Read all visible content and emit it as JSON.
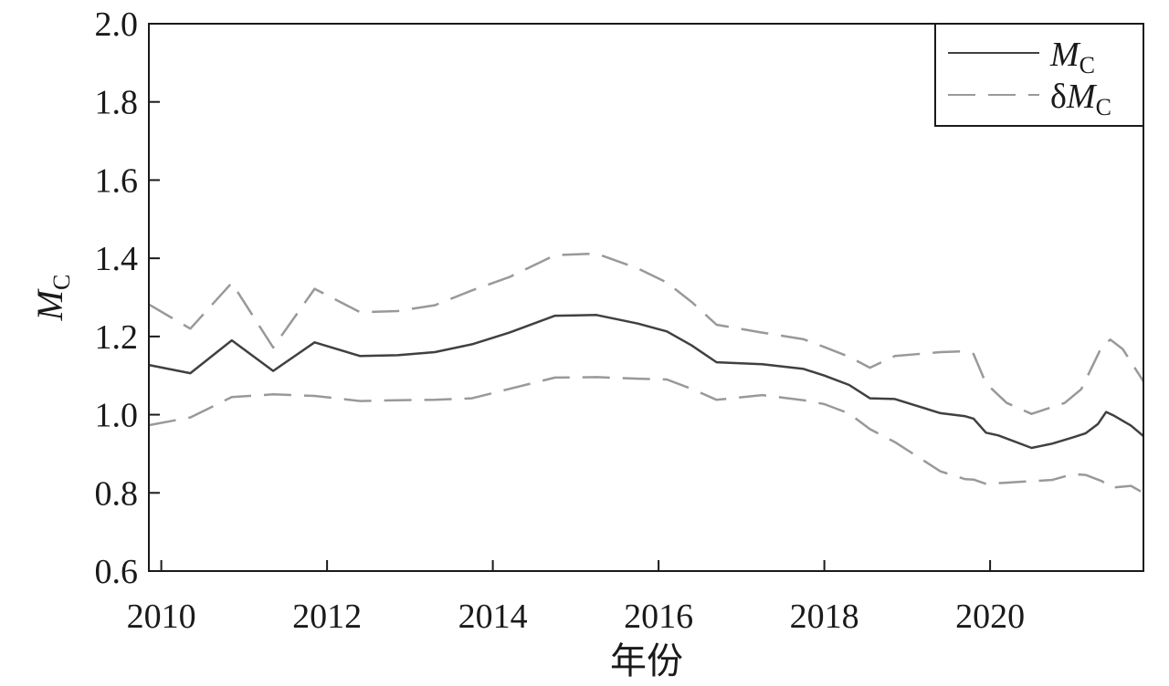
{
  "chart_data": {
    "type": "line",
    "xlabel": "年份",
    "ylabel": {
      "main": "M",
      "sub": "C"
    },
    "xlim": [
      2009.85,
      2021.85
    ],
    "ylim": [
      0.6,
      2.0
    ],
    "xticks": [
      2010,
      2012,
      2014,
      2016,
      2018,
      2020
    ],
    "yticks": [
      "0.6",
      "0.8",
      "1.0",
      "1.2",
      "1.4",
      "1.6",
      "1.8",
      "2.0"
    ],
    "grid": false,
    "legend": "top-right",
    "series": [
      {
        "name": {
          "prefix": "",
          "main": "M",
          "sub": "C"
        },
        "style": "solid",
        "color": "#404040",
        "points": [
          [
            2009.85,
            1.127
          ],
          [
            2010.35,
            1.106
          ],
          [
            2010.85,
            1.19
          ],
          [
            2011.35,
            1.112
          ],
          [
            2011.85,
            1.185
          ],
          [
            2012.4,
            1.15
          ],
          [
            2012.85,
            1.152
          ],
          [
            2013.3,
            1.16
          ],
          [
            2013.75,
            1.18
          ],
          [
            2014.2,
            1.21
          ],
          [
            2014.75,
            1.253
          ],
          [
            2015.25,
            1.255
          ],
          [
            2015.75,
            1.233
          ],
          [
            2016.1,
            1.213
          ],
          [
            2016.4,
            1.177
          ],
          [
            2016.7,
            1.134
          ],
          [
            2017.25,
            1.129
          ],
          [
            2017.75,
            1.117
          ],
          [
            2018.0,
            1.1
          ],
          [
            2018.3,
            1.076
          ],
          [
            2018.55,
            1.042
          ],
          [
            2018.85,
            1.04
          ],
          [
            2019.4,
            1.004
          ],
          [
            2019.7,
            0.996
          ],
          [
            2019.8,
            0.99
          ],
          [
            2019.95,
            0.954
          ],
          [
            2020.1,
            0.947
          ],
          [
            2020.5,
            0.915
          ],
          [
            2020.75,
            0.926
          ],
          [
            2021.0,
            0.942
          ],
          [
            2021.15,
            0.952
          ],
          [
            2021.3,
            0.976
          ],
          [
            2021.4,
            1.007
          ],
          [
            2021.5,
            0.997
          ],
          [
            2021.7,
            0.972
          ],
          [
            2021.85,
            0.945
          ]
        ]
      },
      {
        "name": {
          "prefix": "δ",
          "main": "M",
          "sub": "C"
        },
        "style": "dashed",
        "color": "#999999",
        "points": [
          [
            2009.85,
            1.282
          ],
          [
            2010.35,
            1.22
          ],
          [
            2010.85,
            1.337
          ],
          [
            2011.35,
            1.172
          ],
          [
            2011.85,
            1.322
          ],
          [
            2012.4,
            1.262
          ],
          [
            2012.85,
            1.265
          ],
          [
            2013.3,
            1.28
          ],
          [
            2013.75,
            1.318
          ],
          [
            2014.2,
            1.352
          ],
          [
            2014.75,
            1.408
          ],
          [
            2015.25,
            1.412
          ],
          [
            2015.75,
            1.374
          ],
          [
            2016.1,
            1.338
          ],
          [
            2016.4,
            1.288
          ],
          [
            2016.7,
            1.23
          ],
          [
            2017.25,
            1.21
          ],
          [
            2017.75,
            1.193
          ],
          [
            2018.0,
            1.173
          ],
          [
            2018.3,
            1.148
          ],
          [
            2018.55,
            1.12
          ],
          [
            2018.85,
            1.15
          ],
          [
            2019.4,
            1.16
          ],
          [
            2019.7,
            1.162
          ],
          [
            2019.8,
            1.155
          ],
          [
            2019.95,
            1.08
          ],
          [
            2020.2,
            1.03
          ],
          [
            2020.5,
            1.002
          ],
          [
            2020.9,
            1.03
          ],
          [
            2021.1,
            1.065
          ],
          [
            2021.35,
            1.175
          ],
          [
            2021.45,
            1.192
          ],
          [
            2021.6,
            1.168
          ],
          [
            2021.85,
            1.085
          ]
        ]
      },
      {
        "name": {
          "prefix": "",
          "main": "",
          "sub": ""
        },
        "style": "dashed",
        "color": "#999999",
        "legend": false,
        "points": [
          [
            2009.85,
            0.973
          ],
          [
            2010.35,
            0.993
          ],
          [
            2010.85,
            1.045
          ],
          [
            2011.35,
            1.052
          ],
          [
            2011.85,
            1.048
          ],
          [
            2012.4,
            1.035
          ],
          [
            2012.85,
            1.037
          ],
          [
            2013.3,
            1.038
          ],
          [
            2013.75,
            1.042
          ],
          [
            2014.2,
            1.066
          ],
          [
            2014.75,
            1.095
          ],
          [
            2015.25,
            1.096
          ],
          [
            2015.75,
            1.092
          ],
          [
            2016.1,
            1.09
          ],
          [
            2016.4,
            1.066
          ],
          [
            2016.7,
            1.038
          ],
          [
            2017.25,
            1.05
          ],
          [
            2017.75,
            1.037
          ],
          [
            2018.0,
            1.027
          ],
          [
            2018.3,
            1.003
          ],
          [
            2018.55,
            0.963
          ],
          [
            2018.85,
            0.93
          ],
          [
            2019.4,
            0.855
          ],
          [
            2019.7,
            0.835
          ],
          [
            2019.8,
            0.834
          ],
          [
            2019.95,
            0.823
          ],
          [
            2020.2,
            0.826
          ],
          [
            2020.5,
            0.83
          ],
          [
            2020.75,
            0.833
          ],
          [
            2021.0,
            0.848
          ],
          [
            2021.15,
            0.846
          ],
          [
            2021.35,
            0.83
          ],
          [
            2021.45,
            0.813
          ],
          [
            2021.55,
            0.815
          ],
          [
            2021.7,
            0.818
          ],
          [
            2021.85,
            0.8
          ]
        ]
      }
    ]
  }
}
